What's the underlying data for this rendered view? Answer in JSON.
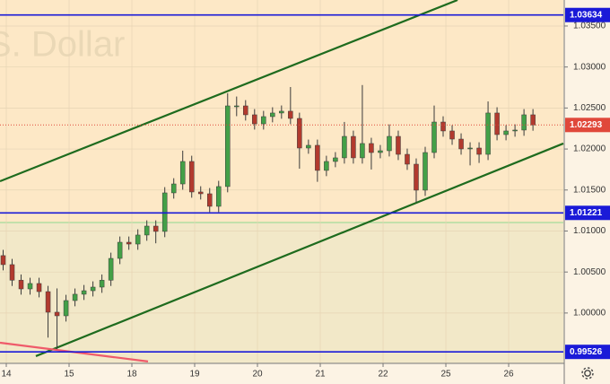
{
  "chart_data": {
    "type": "candlestick",
    "title": "S. Dollar",
    "x": [
      -0.05,
      0.093,
      0.236,
      0.379,
      0.522,
      0.665,
      0.808,
      0.951,
      1.094,
      1.237,
      1.38,
      1.523,
      1.666,
      1.809,
      1.952,
      2.095,
      2.238,
      2.381,
      2.524,
      2.667,
      2.81,
      2.953,
      3.096,
      3.239,
      3.382,
      3.525,
      3.668,
      3.811,
      3.954,
      4.097,
      4.24,
      4.383,
      4.526,
      4.669,
      4.812,
      4.955,
      5.098,
      5.241,
      5.384,
      5.527,
      5.67,
      5.813,
      5.956,
      6.099,
      6.242,
      6.385,
      6.528,
      6.671,
      6.814,
      6.957,
      7.1,
      7.243,
      7.386,
      7.529,
      7.672,
      7.815,
      7.958,
      8.101,
      8.244,
      8.387
    ],
    "open": [
      1.007,
      1.0059,
      1.004,
      1.00294,
      1.0036,
      1.00261,
      1.0001,
      0.99966,
      1.00152,
      1.00229,
      1.00272,
      1.00316,
      1.004,
      1.00666,
      1.00863,
      1.00841,
      1.00951,
      1.0106,
      1.00995,
      1.01465,
      1.01574,
      1.01848,
      1.01476,
      1.01454,
      1.01301,
      1.01542,
      1.02526,
      1.02526,
      1.02417,
      1.02307,
      1.02395,
      1.02439,
      1.02461,
      1.02373,
      1.02012,
      1.02045,
      1.01739,
      1.01848,
      1.01892,
      1.02154,
      1.01892,
      1.02067,
      1.01957,
      1.01979,
      1.02154,
      1.01935,
      1.01815,
      1.01498,
      1.01957,
      1.02329,
      1.0222,
      1.02121,
      1.02001,
      1.02012,
      1.01935,
      1.02439,
      1.02176,
      1.0222,
      1.02231,
      1.02417
    ],
    "high": [
      1.0077,
      1.0066,
      1.0047,
      1.0043,
      1.0043,
      1.00331,
      1.003,
      1.00222,
      1.00299,
      1.00342,
      1.00386,
      1.0047,
      1.00736,
      1.00933,
      1.00933,
      1.01021,
      1.0113,
      1.0113,
      1.01535,
      1.01644,
      1.0198,
      1.01918,
      1.01546,
      1.01524,
      1.01612,
      1.0268,
      1.0264,
      1.02596,
      1.02487,
      1.02465,
      1.02509,
      1.02531,
      1.02756,
      1.02443,
      1.02115,
      1.02115,
      1.01918,
      1.01962,
      1.0233,
      1.02224,
      1.0278,
      1.02137,
      1.02049,
      1.023,
      1.02224,
      1.02005,
      1.01885,
      1.02027,
      1.0253,
      1.02399,
      1.0229,
      1.02191,
      1.02082,
      1.02082,
      1.0258,
      1.02509,
      1.0229,
      1.02301,
      1.02487,
      1.02487
    ],
    "low": [
      1.0052,
      1.0033,
      1.00224,
      1.00224,
      1.00191,
      0.997,
      0.9956,
      0.99896,
      1.00082,
      1.00159,
      1.00202,
      1.00246,
      1.0033,
      1.00596,
      1.00771,
      1.00771,
      1.00881,
      1.0085,
      1.00925,
      1.01395,
      1.01504,
      1.01406,
      1.01384,
      1.01231,
      1.01231,
      1.01472,
      1.024,
      1.02347,
      1.02237,
      1.02237,
      1.02325,
      1.02369,
      1.02303,
      1.0176,
      1.01942,
      1.016,
      1.01669,
      1.01778,
      1.01822,
      1.01822,
      1.01822,
      1.0175,
      1.01887,
      1.01909,
      1.01865,
      1.01745,
      1.0135,
      1.01428,
      1.01887,
      1.0215,
      1.02051,
      1.01931,
      1.018,
      1.0183,
      1.01865,
      1.02106,
      1.02106,
      1.0215,
      1.02161,
      1.02223
    ],
    "close": [
      1.0059,
      1.004,
      1.00294,
      1.0036,
      1.00261,
      1.0001,
      0.99966,
      1.00152,
      1.00229,
      1.00272,
      1.00316,
      1.004,
      1.00666,
      1.00863,
      1.00841,
      1.00951,
      1.0106,
      1.00995,
      1.01465,
      1.01574,
      1.01848,
      1.01476,
      1.01454,
      1.01301,
      1.01542,
      1.02526,
      1.02526,
      1.02417,
      1.02307,
      1.02395,
      1.02439,
      1.02461,
      1.02373,
      1.02012,
      1.02045,
      1.01739,
      1.01848,
      1.01892,
      1.02154,
      1.01892,
      1.02067,
      1.01957,
      1.01979,
      1.02154,
      1.01935,
      1.01815,
      1.01498,
      1.01957,
      1.02329,
      1.0222,
      1.02121,
      1.02001,
      1.02012,
      1.01935,
      1.02439,
      1.02176,
      1.0222,
      1.02231,
      1.02417,
      1.02293
    ],
    "up_color": "#43a047",
    "down_color": "#b23a2e",
    "wick_color": "#3a3a3a",
    "xlim": [
      -0.1,
      8.871
    ],
    "ylim": [
      0.99386,
      1.03817
    ],
    "xticks": [
      {
        "value": 0,
        "label": "14"
      },
      {
        "value": 1,
        "label": "15"
      },
      {
        "value": 2,
        "label": "18"
      },
      {
        "value": 3,
        "label": "19"
      },
      {
        "value": 4,
        "label": "20"
      },
      {
        "value": 5,
        "label": "21"
      },
      {
        "value": 6,
        "label": "22"
      },
      {
        "value": 7,
        "label": "25"
      },
      {
        "value": 8,
        "label": "26"
      }
    ],
    "yticks": [
      {
        "value": 1.035,
        "label": "1.03500"
      },
      {
        "value": 1.03,
        "label": "1.03000"
      },
      {
        "value": 1.025,
        "label": "1.02500"
      },
      {
        "value": 1.02,
        "label": "1.02000"
      },
      {
        "value": 1.015,
        "label": "1.01500"
      },
      {
        "value": 1.01,
        "label": "1.01000"
      },
      {
        "value": 1.005,
        "label": "1.00500"
      },
      {
        "value": 1.0,
        "label": "1.00000"
      }
    ],
    "grid": true,
    "background_split": 1.01104,
    "upper_background": "#fde8c6",
    "lower_background": "#f2e8c8",
    "split_color": "#8fd88f",
    "levels": [
      {
        "value": 1.03634,
        "label": "1.03634",
        "color": "#1a1ad8",
        "style": "solid"
      },
      {
        "value": 1.02293,
        "label": "1.02293",
        "color": "#e0483a",
        "style": "dotted"
      },
      {
        "value": 1.01221,
        "label": "1.01221",
        "color": "#1a1ad8",
        "style": "solid"
      },
      {
        "value": 0.99526,
        "label": "0.99526",
        "color": "#1a1ad8",
        "style": "solid"
      }
    ],
    "trendlines": [
      {
        "x": [
          -0.1,
          7.186
        ],
        "y": [
          1.01607,
          1.03817
        ],
        "color": "#1e6b1e"
      },
      {
        "x": [
          0.471,
          8.871
        ],
        "y": [
          0.99474,
          1.02067
        ],
        "color": "#1e6b1e"
      },
      {
        "x": [
          -0.1,
          2.257
        ],
        "y": [
          0.99638,
          0.99409
        ],
        "color": "#ef5a6a"
      }
    ]
  }
}
